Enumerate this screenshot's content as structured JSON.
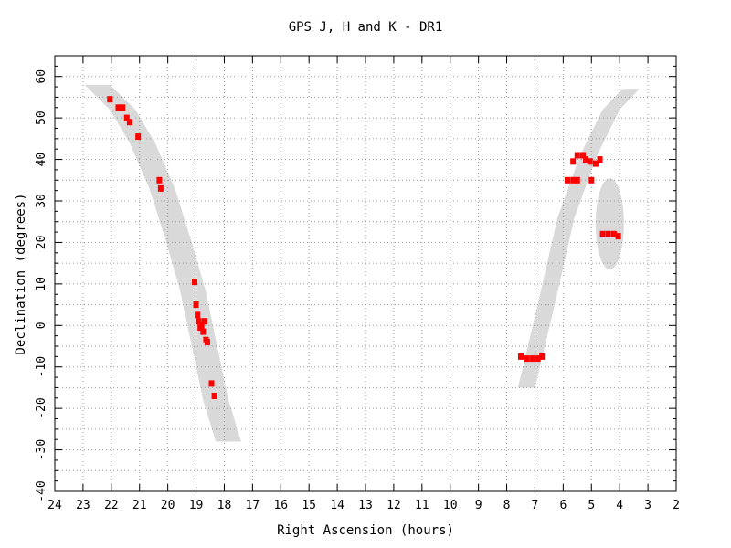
{
  "chart_data": {
    "type": "scatter",
    "title": "GPS J, H and K - DR1",
    "xlabel": "Right Ascension (hours)",
    "ylabel": "Declination (degrees)",
    "xlim": [
      24,
      2
    ],
    "ylim": [
      -40,
      65
    ],
    "x_ticks": [
      24,
      23,
      22,
      21,
      20,
      19,
      18,
      17,
      16,
      15,
      14,
      13,
      12,
      11,
      10,
      9,
      8,
      7,
      6,
      5,
      4,
      3,
      2
    ],
    "y_ticks": [
      -40,
      -30,
      -20,
      -10,
      0,
      10,
      20,
      30,
      40,
      50,
      60
    ],
    "grid": true,
    "colors": {
      "points": "#ff0000",
      "regions": "#d9d9d9",
      "grid": "#9a9a9a",
      "axes": "#000000"
    },
    "regions": [
      {
        "shape": "band",
        "centerline": [
          [
            22.5,
            58
          ],
          [
            21.6,
            52
          ],
          [
            20.9,
            44
          ],
          [
            20.2,
            33
          ],
          [
            19.6,
            20
          ],
          [
            19.1,
            8
          ],
          [
            18.7,
            -5
          ],
          [
            18.3,
            -18
          ],
          [
            17.85,
            -28
          ]
        ],
        "half_width_hours": 0.45
      },
      {
        "shape": "band",
        "centerline": [
          [
            7.3,
            -15
          ],
          [
            6.6,
            5
          ],
          [
            5.9,
            26
          ],
          [
            5.1,
            41
          ],
          [
            4.3,
            52
          ],
          [
            3.6,
            57
          ]
        ],
        "half_width_hours": 0.3
      },
      {
        "shape": "ellipse",
        "center": [
          4.35,
          24.5
        ],
        "radius_hours": 0.5,
        "radius_deg": 11
      }
    ],
    "series": [
      {
        "points": [
          [
            22.05,
            54.5
          ],
          [
            21.75,
            52.5
          ],
          [
            21.6,
            52.5
          ],
          [
            21.45,
            50
          ],
          [
            21.35,
            49
          ],
          [
            21.05,
            45.5
          ],
          [
            20.3,
            35
          ],
          [
            20.25,
            33
          ],
          [
            19.05,
            10.5
          ],
          [
            19.0,
            5
          ],
          [
            18.95,
            2.5
          ],
          [
            18.9,
            1
          ],
          [
            18.85,
            -0.5
          ],
          [
            18.8,
            0
          ],
          [
            18.75,
            -1.5
          ],
          [
            18.7,
            1
          ],
          [
            18.65,
            -3.5
          ],
          [
            18.6,
            -4
          ],
          [
            18.45,
            -14
          ],
          [
            18.35,
            -17
          ],
          [
            7.5,
            -7.5
          ],
          [
            7.3,
            -8
          ],
          [
            7.1,
            -8
          ],
          [
            6.9,
            -8
          ],
          [
            6.75,
            -7.5
          ],
          [
            5.85,
            35
          ],
          [
            5.65,
            35
          ],
          [
            5.5,
            35
          ],
          [
            5.65,
            39.5
          ],
          [
            5.5,
            41
          ],
          [
            5.3,
            41
          ],
          [
            5.2,
            40
          ],
          [
            5.05,
            39.5
          ],
          [
            4.85,
            39
          ],
          [
            4.7,
            40
          ],
          [
            5.0,
            35
          ],
          [
            4.6,
            22
          ],
          [
            4.4,
            22
          ],
          [
            4.2,
            22
          ],
          [
            4.05,
            21.5
          ]
        ]
      }
    ]
  }
}
